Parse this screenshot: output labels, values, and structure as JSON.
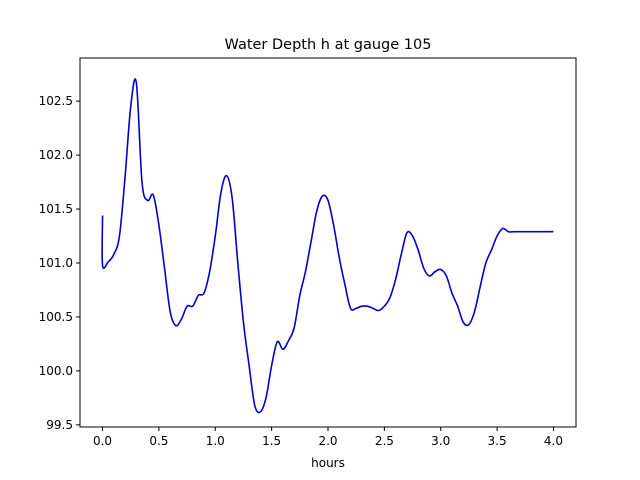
{
  "chart_data": {
    "type": "line",
    "title": "Water Depth h at gauge 105",
    "xlabel": "hours",
    "ylabel": "",
    "xlim": [
      -0.2,
      4.2
    ],
    "ylim": [
      99.48,
      102.9
    ],
    "xticks": [
      0.0,
      0.5,
      1.0,
      1.5,
      2.0,
      2.5,
      3.0,
      3.5,
      4.0
    ],
    "xtick_labels": [
      "0.0",
      "0.5",
      "1.0",
      "1.5",
      "2.0",
      "2.5",
      "3.0",
      "3.5",
      "4.0"
    ],
    "yticks": [
      99.5,
      100.0,
      100.5,
      101.0,
      101.5,
      102.0,
      102.5
    ],
    "ytick_labels": [
      "99.5",
      "100.0",
      "100.5",
      "101.0",
      "101.5",
      "102.0",
      "102.5"
    ],
    "grid": false,
    "series": [
      {
        "name": "h",
        "color": "#0000cc",
        "x": [
          0.0,
          0.0,
          0.05,
          0.1,
          0.15,
          0.2,
          0.25,
          0.3,
          0.35,
          0.4,
          0.45,
          0.5,
          0.55,
          0.6,
          0.65,
          0.7,
          0.75,
          0.8,
          0.85,
          0.9,
          0.95,
          1.0,
          1.05,
          1.1,
          1.15,
          1.2,
          1.25,
          1.3,
          1.35,
          1.4,
          1.45,
          1.5,
          1.55,
          1.6,
          1.65,
          1.7,
          1.75,
          1.8,
          1.85,
          1.9,
          1.95,
          2.0,
          2.05,
          2.1,
          2.15,
          2.2,
          2.25,
          2.3,
          2.35,
          2.4,
          2.45,
          2.5,
          2.55,
          2.6,
          2.65,
          2.7,
          2.75,
          2.8,
          2.85,
          2.9,
          2.95,
          3.0,
          3.05,
          3.1,
          3.15,
          3.2,
          3.25,
          3.3,
          3.35,
          3.4,
          3.45,
          3.5,
          3.55,
          3.6,
          3.65,
          3.7,
          3.75,
          3.8,
          3.85,
          3.9,
          3.95,
          4.0
        ],
        "y": [
          101.44,
          100.98,
          101.01,
          101.08,
          101.25,
          101.8,
          102.45,
          102.67,
          101.75,
          101.58,
          101.63,
          101.35,
          100.95,
          100.55,
          100.42,
          100.48,
          100.6,
          100.6,
          100.7,
          100.72,
          100.92,
          101.25,
          101.65,
          101.81,
          101.6,
          101.0,
          100.45,
          100.05,
          99.68,
          99.62,
          99.75,
          100.05,
          100.27,
          100.2,
          100.28,
          100.4,
          100.7,
          100.92,
          101.2,
          101.48,
          101.62,
          101.58,
          101.35,
          101.05,
          100.8,
          100.58,
          100.58,
          100.6,
          100.6,
          100.58,
          100.56,
          100.6,
          100.68,
          100.85,
          101.08,
          101.28,
          101.25,
          101.12,
          100.95,
          100.88,
          100.92,
          100.94,
          100.88,
          100.72,
          100.6,
          100.45,
          100.43,
          100.55,
          100.78,
          101.0,
          101.12,
          101.25,
          101.32,
          101.29,
          101.29,
          101.29,
          101.29,
          101.29,
          101.29,
          101.29,
          101.29,
          101.29
        ]
      }
    ]
  }
}
